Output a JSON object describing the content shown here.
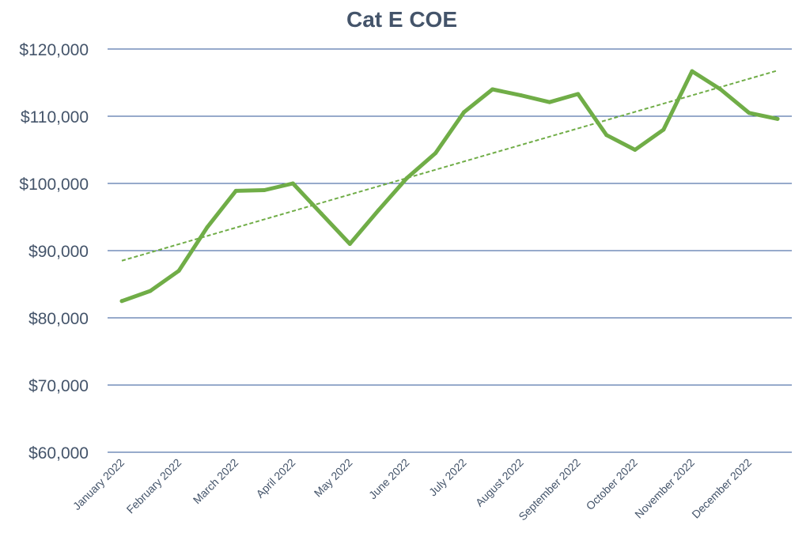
{
  "chart_data": {
    "type": "line",
    "title": "Cat E COE",
    "xlabel": "",
    "ylabel": "",
    "ylim": [
      60000,
      120000
    ],
    "yticks": [
      60000,
      70000,
      80000,
      90000,
      100000,
      110000,
      120000
    ],
    "ytick_labels": [
      "$60,000",
      "$70,000",
      "$80,000",
      "$90,000",
      "$100,000",
      "$110,000",
      "$120,000"
    ],
    "grid": true,
    "legend": "none",
    "xtick_labels": [
      "January 2022",
      "February 2022",
      "March 2022",
      "April 2022",
      "May 2022",
      "June 2022",
      "July 2022",
      "August 2022",
      "September 2022",
      "October 2022",
      "November 2022",
      "December 2022"
    ],
    "series": [
      {
        "color": "#70ad47",
        "values": [
          82500,
          84000,
          87000,
          93500,
          98900,
          99000,
          100000,
          95500,
          91000,
          96000,
          100800,
          104500,
          110600,
          114000,
          113100,
          112100,
          113300,
          107200,
          105000,
          108000,
          116700,
          114000,
          110500,
          109600
        ]
      }
    ],
    "trendline": {
      "type": "linear",
      "style": "dashed",
      "color": "#70ad47",
      "start": 88500,
      "end": 116800
    }
  }
}
